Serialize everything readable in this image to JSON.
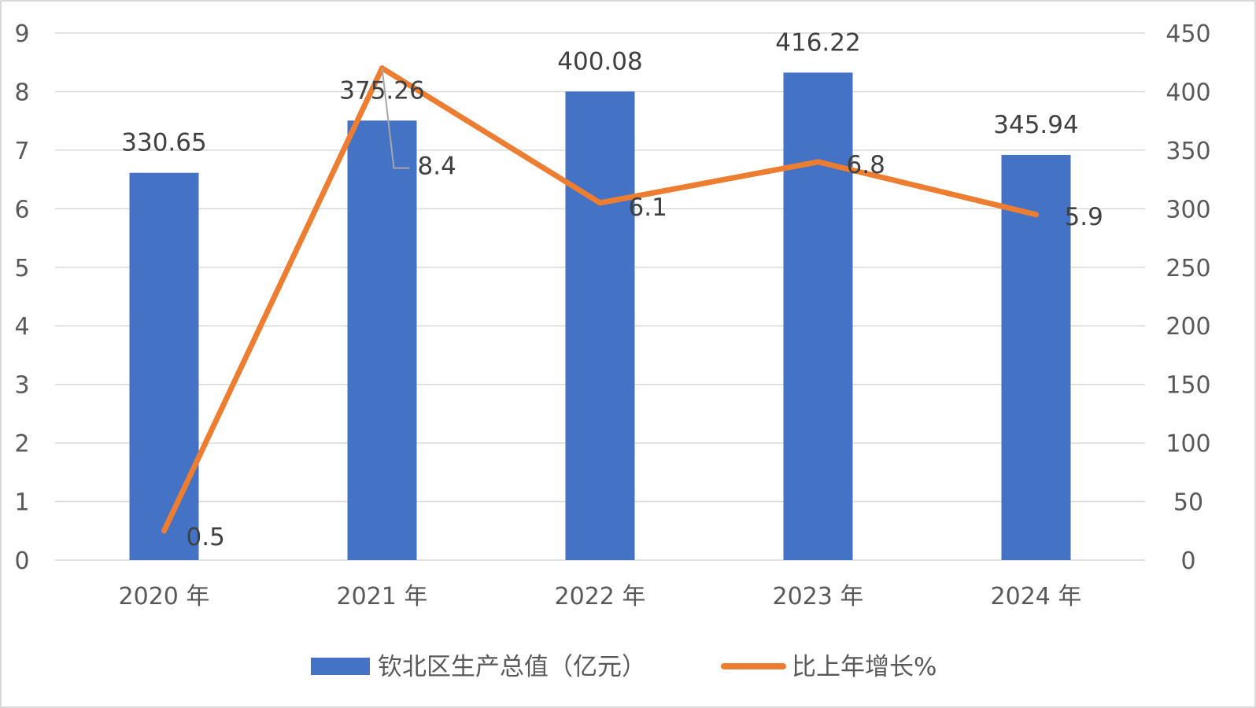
{
  "chart_data": {
    "type": "bar",
    "categories": [
      "2020 年",
      "2021 年",
      "2022 年",
      "2023 年",
      "2024 年"
    ],
    "series": [
      {
        "name": "钦北区生产总值（亿元）",
        "type": "bar",
        "axis": "right",
        "values": [
          330.65,
          375.26,
          400.08,
          416.22,
          345.94
        ],
        "labels": [
          "330.65",
          "375.26",
          "400.08",
          "416.22",
          "345.94"
        ],
        "color": "#4472C4"
      },
      {
        "name": "比上年增长%",
        "type": "line",
        "axis": "left",
        "values": [
          0.5,
          8.4,
          6.1,
          6.8,
          5.9
        ],
        "labels": [
          "0.5",
          "8.4",
          "6.1",
          "6.8",
          "5.9"
        ],
        "color": "#ED7D31"
      }
    ],
    "left_axis": {
      "ylim": [
        0,
        9
      ],
      "ticks": [
        "0",
        "1",
        "2",
        "3",
        "4",
        "5",
        "6",
        "7",
        "8",
        "9"
      ]
    },
    "right_axis": {
      "ylim": [
        0,
        450
      ],
      "ticks": [
        "0",
        "50",
        "100",
        "150",
        "200",
        "250",
        "300",
        "350",
        "400",
        "450"
      ]
    },
    "grid": true,
    "legend": "bottom"
  }
}
